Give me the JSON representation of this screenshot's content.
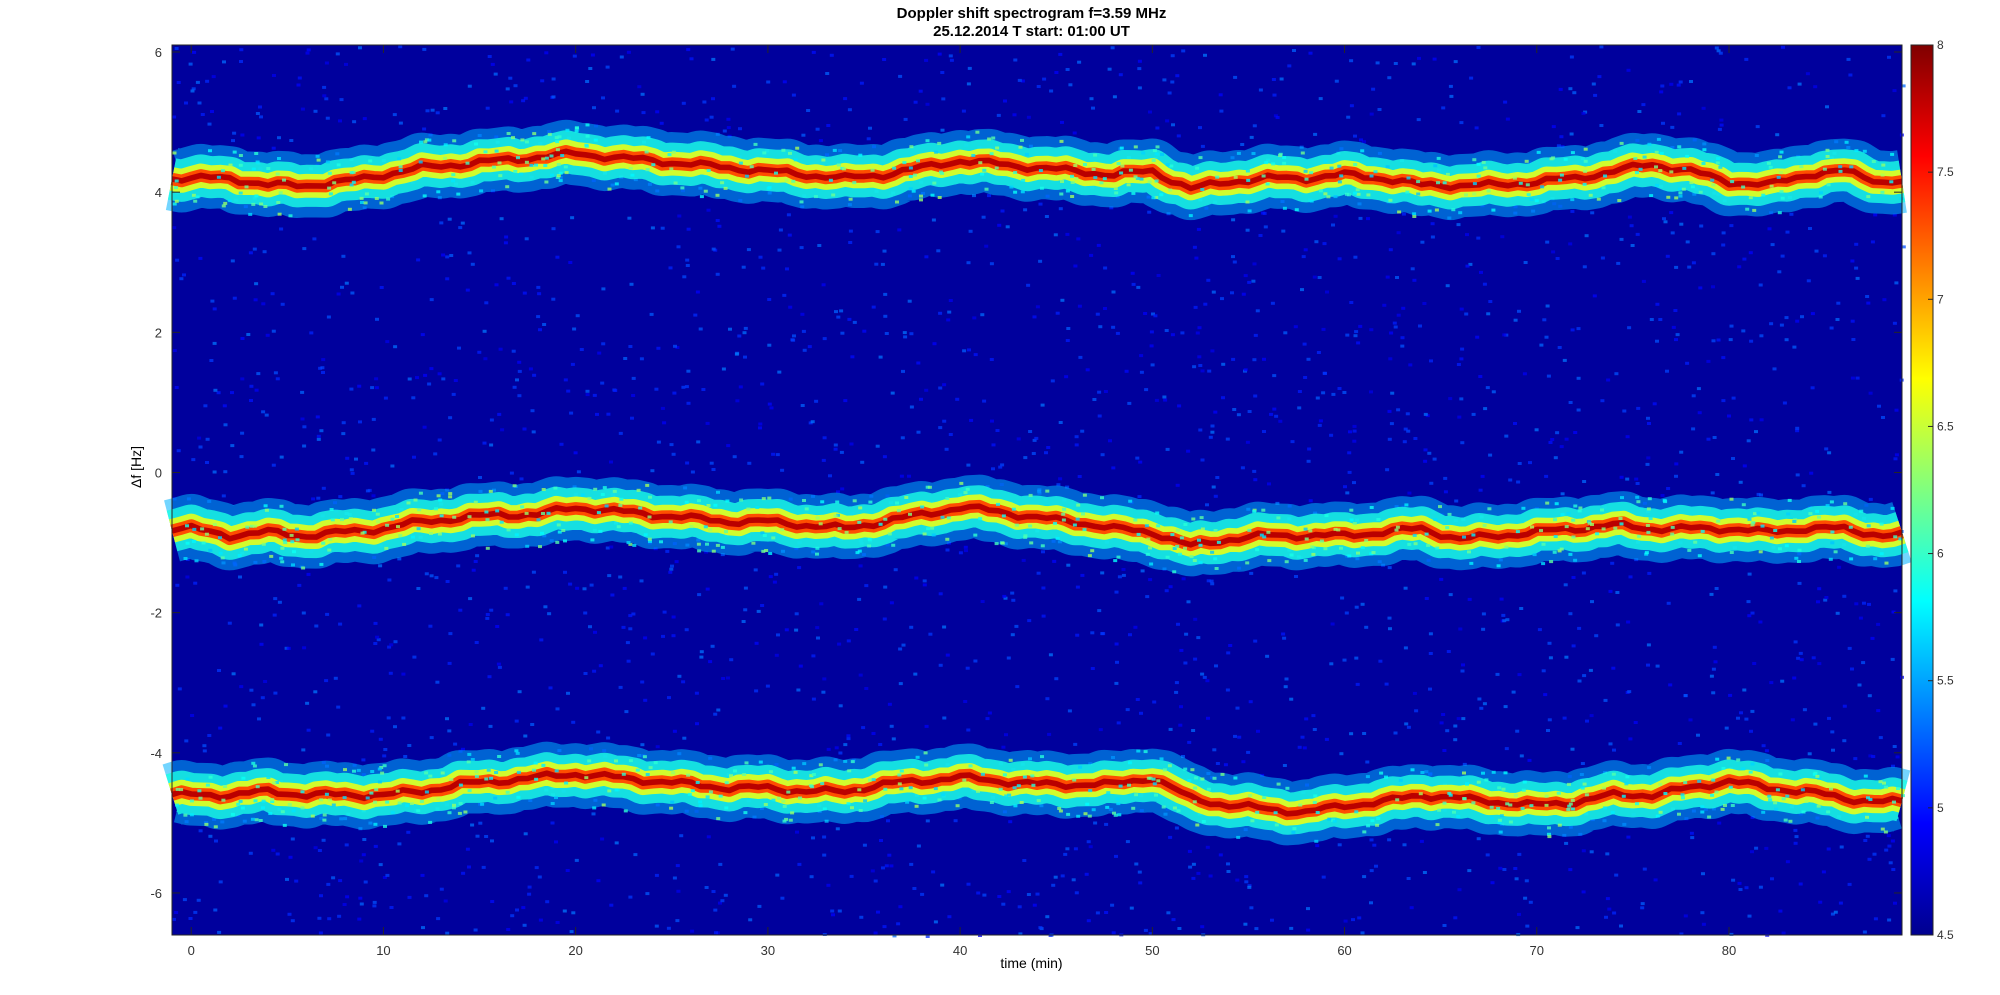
{
  "chart_data": {
    "type": "heatmap",
    "title": "Doppler shift spectrogram f=3.59 MHz",
    "subtitle": "25.12.2014    T start: 01:00 UT",
    "xlabel": "time (min)",
    "ylabel": "Δf [Hz]",
    "xlim": [
      -1,
      89
    ],
    "ylim": [
      -6.6,
      6.1
    ],
    "x_ticks": [
      0,
      10,
      20,
      30,
      40,
      50,
      60,
      70,
      80
    ],
    "y_ticks": [
      -6,
      -4,
      -2,
      0,
      2,
      4,
      6
    ],
    "colorbar": {
      "range": [
        4.5,
        8
      ],
      "ticks": [
        4.5,
        5,
        5.5,
        6,
        6.5,
        7,
        7.5,
        8
      ],
      "colormap": "jet"
    },
    "background_level": 4.6,
    "series": [
      {
        "x": [
          0,
          2,
          4,
          6,
          8,
          10,
          12,
          14,
          16,
          18,
          20,
          22,
          24,
          26,
          28,
          30,
          32,
          34,
          36,
          38,
          40,
          42,
          44,
          46,
          48,
          50,
          52,
          54,
          56,
          58,
          60,
          62,
          64,
          66,
          68,
          70,
          72,
          74,
          76,
          78,
          80,
          82,
          84,
          86,
          88
        ],
        "y": [
          4.2,
          4.2,
          4.1,
          4.1,
          4.15,
          4.25,
          4.35,
          4.4,
          4.45,
          4.5,
          4.55,
          4.5,
          4.45,
          4.4,
          4.35,
          4.3,
          4.25,
          4.2,
          4.25,
          4.35,
          4.45,
          4.4,
          4.35,
          4.3,
          4.25,
          4.3,
          4.05,
          4.15,
          4.2,
          4.2,
          4.25,
          4.2,
          4.1,
          4.1,
          4.1,
          4.15,
          4.2,
          4.3,
          4.4,
          4.3,
          4.15,
          4.1,
          4.25,
          4.3,
          4.15
        ]
      },
      {
        "x": [
          0,
          2,
          4,
          6,
          8,
          10,
          12,
          14,
          16,
          18,
          20,
          22,
          24,
          26,
          28,
          30,
          32,
          34,
          36,
          38,
          40,
          42,
          44,
          46,
          48,
          50,
          52,
          54,
          56,
          58,
          60,
          62,
          64,
          66,
          68,
          70,
          72,
          74,
          76,
          78,
          80,
          82,
          84,
          86,
          88
        ],
        "y": [
          -0.8,
          -0.9,
          -0.85,
          -0.9,
          -0.85,
          -0.8,
          -0.7,
          -0.65,
          -0.6,
          -0.6,
          -0.5,
          -0.55,
          -0.6,
          -0.65,
          -0.7,
          -0.7,
          -0.75,
          -0.8,
          -0.7,
          -0.6,
          -0.5,
          -0.55,
          -0.65,
          -0.7,
          -0.8,
          -0.85,
          -1.05,
          -0.95,
          -0.9,
          -0.9,
          -0.9,
          -0.85,
          -0.8,
          -0.95,
          -0.9,
          -0.85,
          -0.8,
          -0.75,
          -0.8,
          -0.8,
          -0.8,
          -0.85,
          -0.8,
          -0.8,
          -0.9
        ]
      },
      {
        "x": [
          0,
          2,
          4,
          6,
          8,
          10,
          12,
          14,
          16,
          18,
          20,
          22,
          24,
          26,
          28,
          30,
          32,
          34,
          36,
          38,
          40,
          42,
          44,
          46,
          48,
          50,
          52,
          54,
          56,
          58,
          60,
          62,
          64,
          66,
          68,
          70,
          72,
          74,
          76,
          78,
          80,
          82,
          84,
          86,
          88
        ],
        "y": [
          -4.6,
          -4.6,
          -4.55,
          -4.6,
          -4.6,
          -4.6,
          -4.55,
          -4.45,
          -4.4,
          -4.35,
          -4.3,
          -4.35,
          -4.4,
          -4.45,
          -4.5,
          -4.5,
          -4.55,
          -4.55,
          -4.45,
          -4.4,
          -4.35,
          -4.4,
          -4.45,
          -4.45,
          -4.45,
          -4.35,
          -4.65,
          -4.75,
          -4.8,
          -4.85,
          -4.75,
          -4.7,
          -4.6,
          -4.65,
          -4.7,
          -4.75,
          -4.7,
          -4.6,
          -4.6,
          -4.5,
          -4.4,
          -4.5,
          -4.55,
          -4.65,
          -4.7
        ]
      }
    ]
  }
}
